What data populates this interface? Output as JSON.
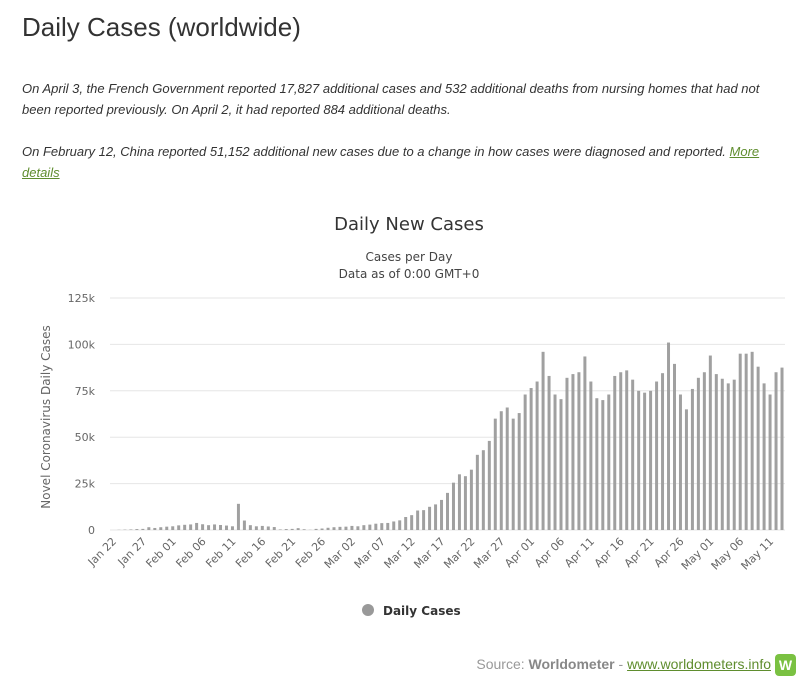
{
  "page": {
    "title": "Daily Cases (worldwide)",
    "note1": "On April 3, the French Government reported 17,827 additional cases and 532 additional deaths from nursing homes that had not been reported previously. On April 2, it had reported 884 additional deaths.",
    "note2_text": "On February 12, China reported 51,152 additional new cases due to a change in how cases were diagnosed and reported. ",
    "note2_link": "More details",
    "source_prefix": "Source: ",
    "source_name": "Worldometer",
    "source_sep": " - ",
    "source_url": "www.worldometers.info",
    "logo_letter": "W"
  },
  "colors": {
    "bar": "#a0a0a0",
    "link": "#5f8d2e",
    "logo": "#7ac142"
  },
  "chart_data": {
    "type": "bar",
    "title": "Daily New Cases",
    "subtitle_line1": "Cases per Day",
    "subtitle_line2": "Data as of 0:00 GMT+0",
    "ylabel": "Novel Coronavirus Daily Cases",
    "xlabel": "",
    "ylim": [
      0,
      125000
    ],
    "yticks": [
      0,
      25000,
      50000,
      75000,
      100000,
      125000
    ],
    "ytick_labels": [
      "0",
      "25k",
      "50k",
      "75k",
      "100k",
      "125k"
    ],
    "x_tick_labels": [
      "Jan 22",
      "Jan 27",
      "Feb 01",
      "Feb 06",
      "Feb 11",
      "Feb 16",
      "Feb 21",
      "Feb 26",
      "Mar 02",
      "Mar 07",
      "Mar 12",
      "Mar 17",
      "Mar 22",
      "Mar 27",
      "Apr 01",
      "Apr 06",
      "Apr 11",
      "Apr 16",
      "Apr 21",
      "Apr 26",
      "May 01",
      "May 06",
      "May 11"
    ],
    "x_tick_every": 5,
    "grid": true,
    "legend": "bottom-center",
    "series": [
      {
        "name": "Daily Cases",
        "values": [
          0,
          100,
          200,
          300,
          500,
          600,
          1500,
          1100,
          1500,
          1800,
          2000,
          2500,
          2800,
          3000,
          3800,
          3100,
          2600,
          3000,
          2700,
          2400,
          2000,
          14100,
          5100,
          2600,
          2000,
          2200,
          1900,
          1600,
          300,
          500,
          600,
          1000,
          400,
          100,
          600,
          800,
          1200,
          1500,
          1700,
          1800,
          2200,
          2000,
          2600,
          2900,
          3400,
          3700,
          3800,
          4600,
          5200,
          7000,
          8000,
          10500,
          10700,
          12500,
          13800,
          16200,
          20000,
          25500,
          30000,
          29000,
          32500,
          40500,
          43000,
          48000,
          60000,
          64000,
          66000,
          60000,
          63000,
          73000,
          76500,
          80000,
          96000,
          83000,
          73000,
          70500,
          82000,
          84000,
          85000,
          93500,
          80000,
          71000,
          70000,
          73000,
          83000,
          85000,
          86000,
          81000,
          75000,
          74000,
          75000,
          80000,
          84500,
          101000,
          89500,
          73000,
          65000,
          76000,
          82000,
          85000,
          94000,
          84000,
          81500,
          79000,
          81000,
          95000,
          95000,
          96000,
          88000,
          79000,
          73000,
          85000,
          87500
        ]
      }
    ]
  }
}
